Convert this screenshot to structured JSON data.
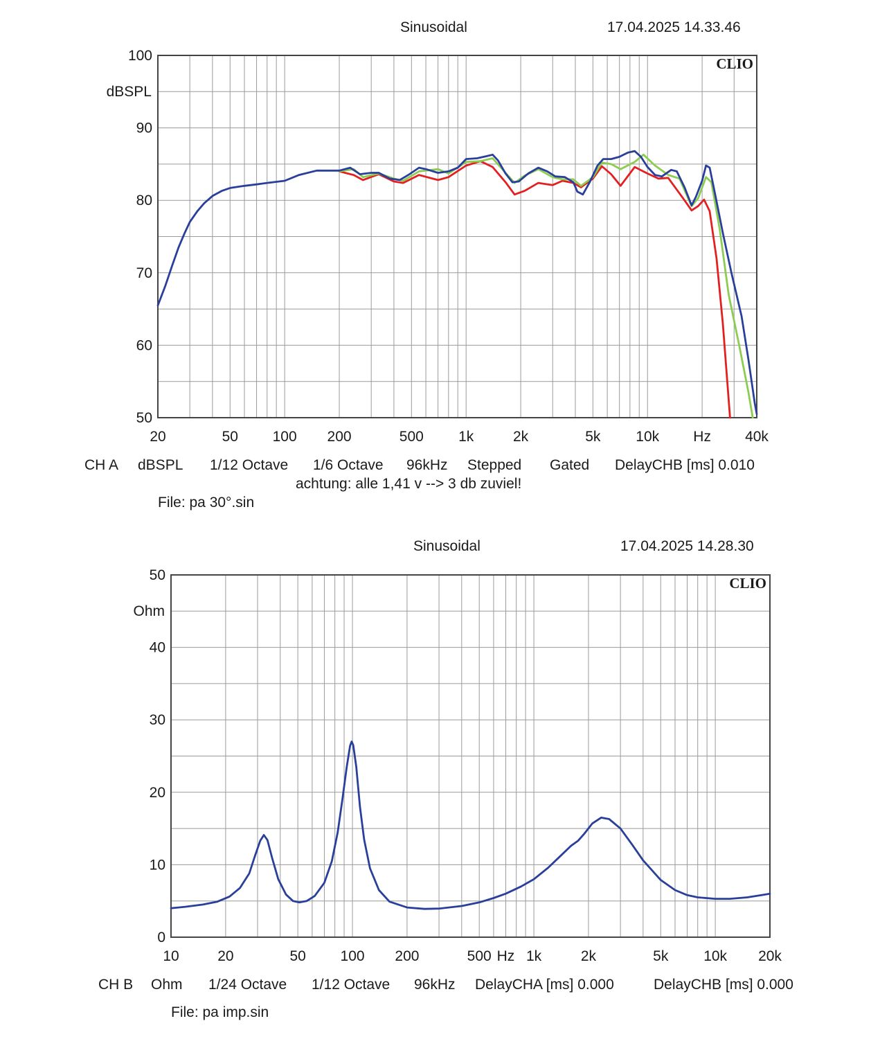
{
  "colors": {
    "blue": "#2a3f9a",
    "red": "#e32020",
    "green": "#8ccc50",
    "grid": "#9a9a9a",
    "frame": "#444444"
  },
  "top": {
    "header": {
      "mode": "Sinusoidal",
      "timestamp": "17.04.2025 14.33.46"
    },
    "brand": "CLIO",
    "unit_label": "dBSPL",
    "footer": {
      "channel": "CH A",
      "unit": "dBSPL",
      "smoothing1": "1/12 Octave",
      "smoothing2": "1/6 Octave",
      "rate": "96kHz",
      "mode1": "Stepped",
      "mode2": "Gated",
      "delay": "DelayCHB [ms] 0.010",
      "note": "achtung: alle 1,41 v --> 3 db zuviel!",
      "file": "File: pa 30°.sin"
    }
  },
  "bottom": {
    "header": {
      "mode": "Sinusoidal",
      "timestamp": "17.04.2025 14.28.30"
    },
    "brand": "CLIO",
    "unit_label": "Ohm",
    "footer": {
      "channel": "CH B",
      "unit": "Ohm",
      "smoothing1": "1/24 Octave",
      "smoothing2": "1/12 Octave",
      "rate": "96kHz",
      "delay_a": "DelayCHA [ms] 0.000",
      "delay_b": "DelayCHB [ms] 0.000",
      "file": "File: pa imp.sin"
    }
  },
  "chart_data": [
    {
      "type": "line",
      "xscale": "log",
      "xlim": [
        20,
        40000
      ],
      "ylim": [
        50,
        100
      ],
      "ylabel": "dBSPL",
      "xticks": [
        {
          "v": 20,
          "t": "20"
        },
        {
          "v": 50,
          "t": "50"
        },
        {
          "v": 100,
          "t": "100"
        },
        {
          "v": 200,
          "t": "200"
        },
        {
          "v": 500,
          "t": "500"
        },
        {
          "v": 1000,
          "t": "1k"
        },
        {
          "v": 2000,
          "t": "2k"
        },
        {
          "v": 5000,
          "t": "5k"
        },
        {
          "v": 10000,
          "t": "10k"
        },
        {
          "v": 20000,
          "t": "Hz"
        },
        {
          "v": 40000,
          "t": "40k"
        }
      ],
      "yticks": [
        {
          "v": 100,
          "t": "100"
        },
        {
          "v": 90,
          "t": "90"
        },
        {
          "v": 80,
          "t": "80"
        },
        {
          "v": 70,
          "t": "70"
        },
        {
          "v": 60,
          "t": "60"
        },
        {
          "v": 50,
          "t": "50"
        }
      ],
      "series": [
        {
          "color": "#e32020",
          "points": [
            [
              200,
              84.0
            ],
            [
              240,
              83.5
            ],
            [
              270,
              82.8
            ],
            [
              330,
              83.6
            ],
            [
              400,
              82.6
            ],
            [
              450,
              82.4
            ],
            [
              550,
              83.5
            ],
            [
              700,
              82.8
            ],
            [
              800,
              83.2
            ],
            [
              1000,
              84.8
            ],
            [
              1200,
              85.4
            ],
            [
              1400,
              84.6
            ],
            [
              1650,
              82.5
            ],
            [
              1850,
              80.8
            ],
            [
              2100,
              81.3
            ],
            [
              2500,
              82.4
            ],
            [
              3000,
              82.1
            ],
            [
              3400,
              82.7
            ],
            [
              3900,
              82.4
            ],
            [
              4300,
              81.8
            ],
            [
              5000,
              83.0
            ],
            [
              5600,
              84.7
            ],
            [
              6300,
              83.6
            ],
            [
              7100,
              82.0
            ],
            [
              8500,
              84.6
            ],
            [
              10000,
              83.7
            ],
            [
              11500,
              83.0
            ],
            [
              13000,
              83.1
            ],
            [
              16000,
              80.0
            ],
            [
              17500,
              78.6
            ],
            [
              19000,
              79.2
            ],
            [
              20500,
              80.1
            ],
            [
              22000,
              78.5
            ],
            [
              24000,
              72.0
            ],
            [
              26000,
              63.0
            ],
            [
              27500,
              55.0
            ],
            [
              28500,
              50.0
            ]
          ]
        },
        {
          "color": "#8ccc50",
          "points": [
            [
              200,
              84.0
            ],
            [
              240,
              84.3
            ],
            [
              270,
              83.2
            ],
            [
              330,
              83.7
            ],
            [
              400,
              83.0
            ],
            [
              450,
              82.7
            ],
            [
              550,
              84.0
            ],
            [
              700,
              84.3
            ],
            [
              800,
              83.7
            ],
            [
              1000,
              85.3
            ],
            [
              1200,
              85.4
            ],
            [
              1400,
              85.8
            ],
            [
              1650,
              83.8
            ],
            [
              1850,
              82.4
            ],
            [
              2100,
              83.4
            ],
            [
              2500,
              84.3
            ],
            [
              3000,
              83.2
            ],
            [
              3400,
              82.9
            ],
            [
              3900,
              82.9
            ],
            [
              4300,
              82.0
            ],
            [
              5000,
              83.2
            ],
            [
              5600,
              85.2
            ],
            [
              6300,
              85.0
            ],
            [
              7100,
              84.3
            ],
            [
              8500,
              85.3
            ],
            [
              9500,
              86.3
            ],
            [
              11000,
              84.8
            ],
            [
              13000,
              83.5
            ],
            [
              15000,
              83.0
            ],
            [
              17500,
              79.2
            ],
            [
              19000,
              80.3
            ],
            [
              21000,
              83.2
            ],
            [
              22500,
              82.5
            ],
            [
              25000,
              76.0
            ],
            [
              28000,
              67.0
            ],
            [
              32000,
              60.0
            ],
            [
              36000,
              53.5
            ],
            [
              38000,
              50.0
            ]
          ]
        },
        {
          "color": "#2a3f9a",
          "points": [
            [
              20,
              65.5
            ],
            [
              22,
              68.2
            ],
            [
              24,
              71.0
            ],
            [
              26,
              73.5
            ],
            [
              28,
              75.4
            ],
            [
              30,
              77.0
            ],
            [
              33,
              78.5
            ],
            [
              36,
              79.6
            ],
            [
              40,
              80.6
            ],
            [
              45,
              81.3
            ],
            [
              50,
              81.7
            ],
            [
              60,
              82.0
            ],
            [
              70,
              82.2
            ],
            [
              80,
              82.4
            ],
            [
              100,
              82.7
            ],
            [
              120,
              83.5
            ],
            [
              150,
              84.1
            ],
            [
              175,
              84.1
            ],
            [
              200,
              84.1
            ],
            [
              230,
              84.5
            ],
            [
              260,
              83.6
            ],
            [
              300,
              83.8
            ],
            [
              330,
              83.8
            ],
            [
              380,
              83.0
            ],
            [
              430,
              82.8
            ],
            [
              480,
              83.5
            ],
            [
              550,
              84.5
            ],
            [
              600,
              84.3
            ],
            [
              700,
              83.8
            ],
            [
              800,
              84.0
            ],
            [
              900,
              84.5
            ],
            [
              1000,
              85.7
            ],
            [
              1150,
              85.8
            ],
            [
              1300,
              86.1
            ],
            [
              1400,
              86.3
            ],
            [
              1500,
              85.5
            ],
            [
              1650,
              83.7
            ],
            [
              1800,
              82.5
            ],
            [
              1950,
              82.6
            ],
            [
              2200,
              83.7
            ],
            [
              2500,
              84.5
            ],
            [
              2800,
              84.0
            ],
            [
              3100,
              83.3
            ],
            [
              3500,
              83.2
            ],
            [
              3900,
              82.5
            ],
            [
              4100,
              81.2
            ],
            [
              4400,
              80.8
            ],
            [
              4800,
              82.5
            ],
            [
              5300,
              84.8
            ],
            [
              5700,
              85.7
            ],
            [
              6300,
              85.7
            ],
            [
              7000,
              86.0
            ],
            [
              7800,
              86.6
            ],
            [
              8500,
              86.8
            ],
            [
              9200,
              86.0
            ],
            [
              10000,
              84.6
            ],
            [
              11000,
              83.5
            ],
            [
              12000,
              83.3
            ],
            [
              13500,
              84.2
            ],
            [
              14500,
              84.0
            ],
            [
              16000,
              81.8
            ],
            [
              17500,
              79.3
            ],
            [
              18500,
              80.5
            ],
            [
              20000,
              82.7
            ],
            [
              21000,
              84.8
            ],
            [
              22000,
              84.5
            ],
            [
              23500,
              81.0
            ],
            [
              26000,
              75.5
            ],
            [
              29000,
              70.0
            ],
            [
              33000,
              64.0
            ],
            [
              36000,
              58.0
            ],
            [
              39000,
              52.0
            ],
            [
              40000,
              50.5
            ]
          ]
        }
      ]
    },
    {
      "type": "line",
      "xscale": "log",
      "xlim": [
        10,
        20000
      ],
      "ylim": [
        0,
        50
      ],
      "ylabel": "Ohm",
      "xticks": [
        {
          "v": 10,
          "t": "10"
        },
        {
          "v": 20,
          "t": "20"
        },
        {
          "v": 50,
          "t": "50"
        },
        {
          "v": 100,
          "t": "100"
        },
        {
          "v": 200,
          "t": "200"
        },
        {
          "v": 500,
          "t": "500"
        },
        {
          "v": 700,
          "t": "Hz"
        },
        {
          "v": 1000,
          "t": "1k"
        },
        {
          "v": 2000,
          "t": "2k"
        },
        {
          "v": 5000,
          "t": "5k"
        },
        {
          "v": 10000,
          "t": "10k"
        },
        {
          "v": 20000,
          "t": "20k"
        }
      ],
      "yticks": [
        {
          "v": 50,
          "t": "50"
        },
        {
          "v": 40,
          "t": "40"
        },
        {
          "v": 30,
          "t": "30"
        },
        {
          "v": 20,
          "t": "20"
        },
        {
          "v": 10,
          "t": "10"
        },
        {
          "v": 0,
          "t": "0"
        }
      ],
      "series": [
        {
          "color": "#2a3f9a",
          "points": [
            [
              10,
              4.0
            ],
            [
              12,
              4.2
            ],
            [
              15,
              4.5
            ],
            [
              18,
              4.9
            ],
            [
              21,
              5.6
            ],
            [
              24,
              6.8
            ],
            [
              27,
              8.8
            ],
            [
              29,
              11.2
            ],
            [
              31,
              13.3
            ],
            [
              32.5,
              14.1
            ],
            [
              34,
              13.4
            ],
            [
              36,
              11.0
            ],
            [
              39,
              8.0
            ],
            [
              43,
              5.9
            ],
            [
              47,
              5.0
            ],
            [
              51,
              4.8
            ],
            [
              56,
              5.0
            ],
            [
              62,
              5.7
            ],
            [
              70,
              7.5
            ],
            [
              77,
              10.5
            ],
            [
              83,
              14.5
            ],
            [
              88,
              19.0
            ],
            [
              93,
              23.5
            ],
            [
              97,
              26.4
            ],
            [
              99,
              27.0
            ],
            [
              101,
              26.5
            ],
            [
              105,
              23.5
            ],
            [
              110,
              18.0
            ],
            [
              116,
              13.5
            ],
            [
              125,
              9.5
            ],
            [
              140,
              6.5
            ],
            [
              160,
              4.9
            ],
            [
              200,
              4.1
            ],
            [
              250,
              3.9
            ],
            [
              300,
              3.95
            ],
            [
              400,
              4.3
            ],
            [
              500,
              4.8
            ],
            [
              600,
              5.4
            ],
            [
              700,
              6.0
            ],
            [
              850,
              7.0
            ],
            [
              1000,
              8.0
            ],
            [
              1200,
              9.6
            ],
            [
              1400,
              11.2
            ],
            [
              1600,
              12.6
            ],
            [
              1750,
              13.3
            ],
            [
              1900,
              14.3
            ],
            [
              2100,
              15.7
            ],
            [
              2350,
              16.5
            ],
            [
              2600,
              16.3
            ],
            [
              3000,
              15.0
            ],
            [
              3500,
              12.7
            ],
            [
              4000,
              10.6
            ],
            [
              5000,
              7.9
            ],
            [
              6000,
              6.5
            ],
            [
              7000,
              5.8
            ],
            [
              8000,
              5.5
            ],
            [
              10000,
              5.3
            ],
            [
              12000,
              5.3
            ],
            [
              15000,
              5.5
            ],
            [
              18000,
              5.8
            ],
            [
              20000,
              6.0
            ]
          ]
        }
      ]
    }
  ]
}
